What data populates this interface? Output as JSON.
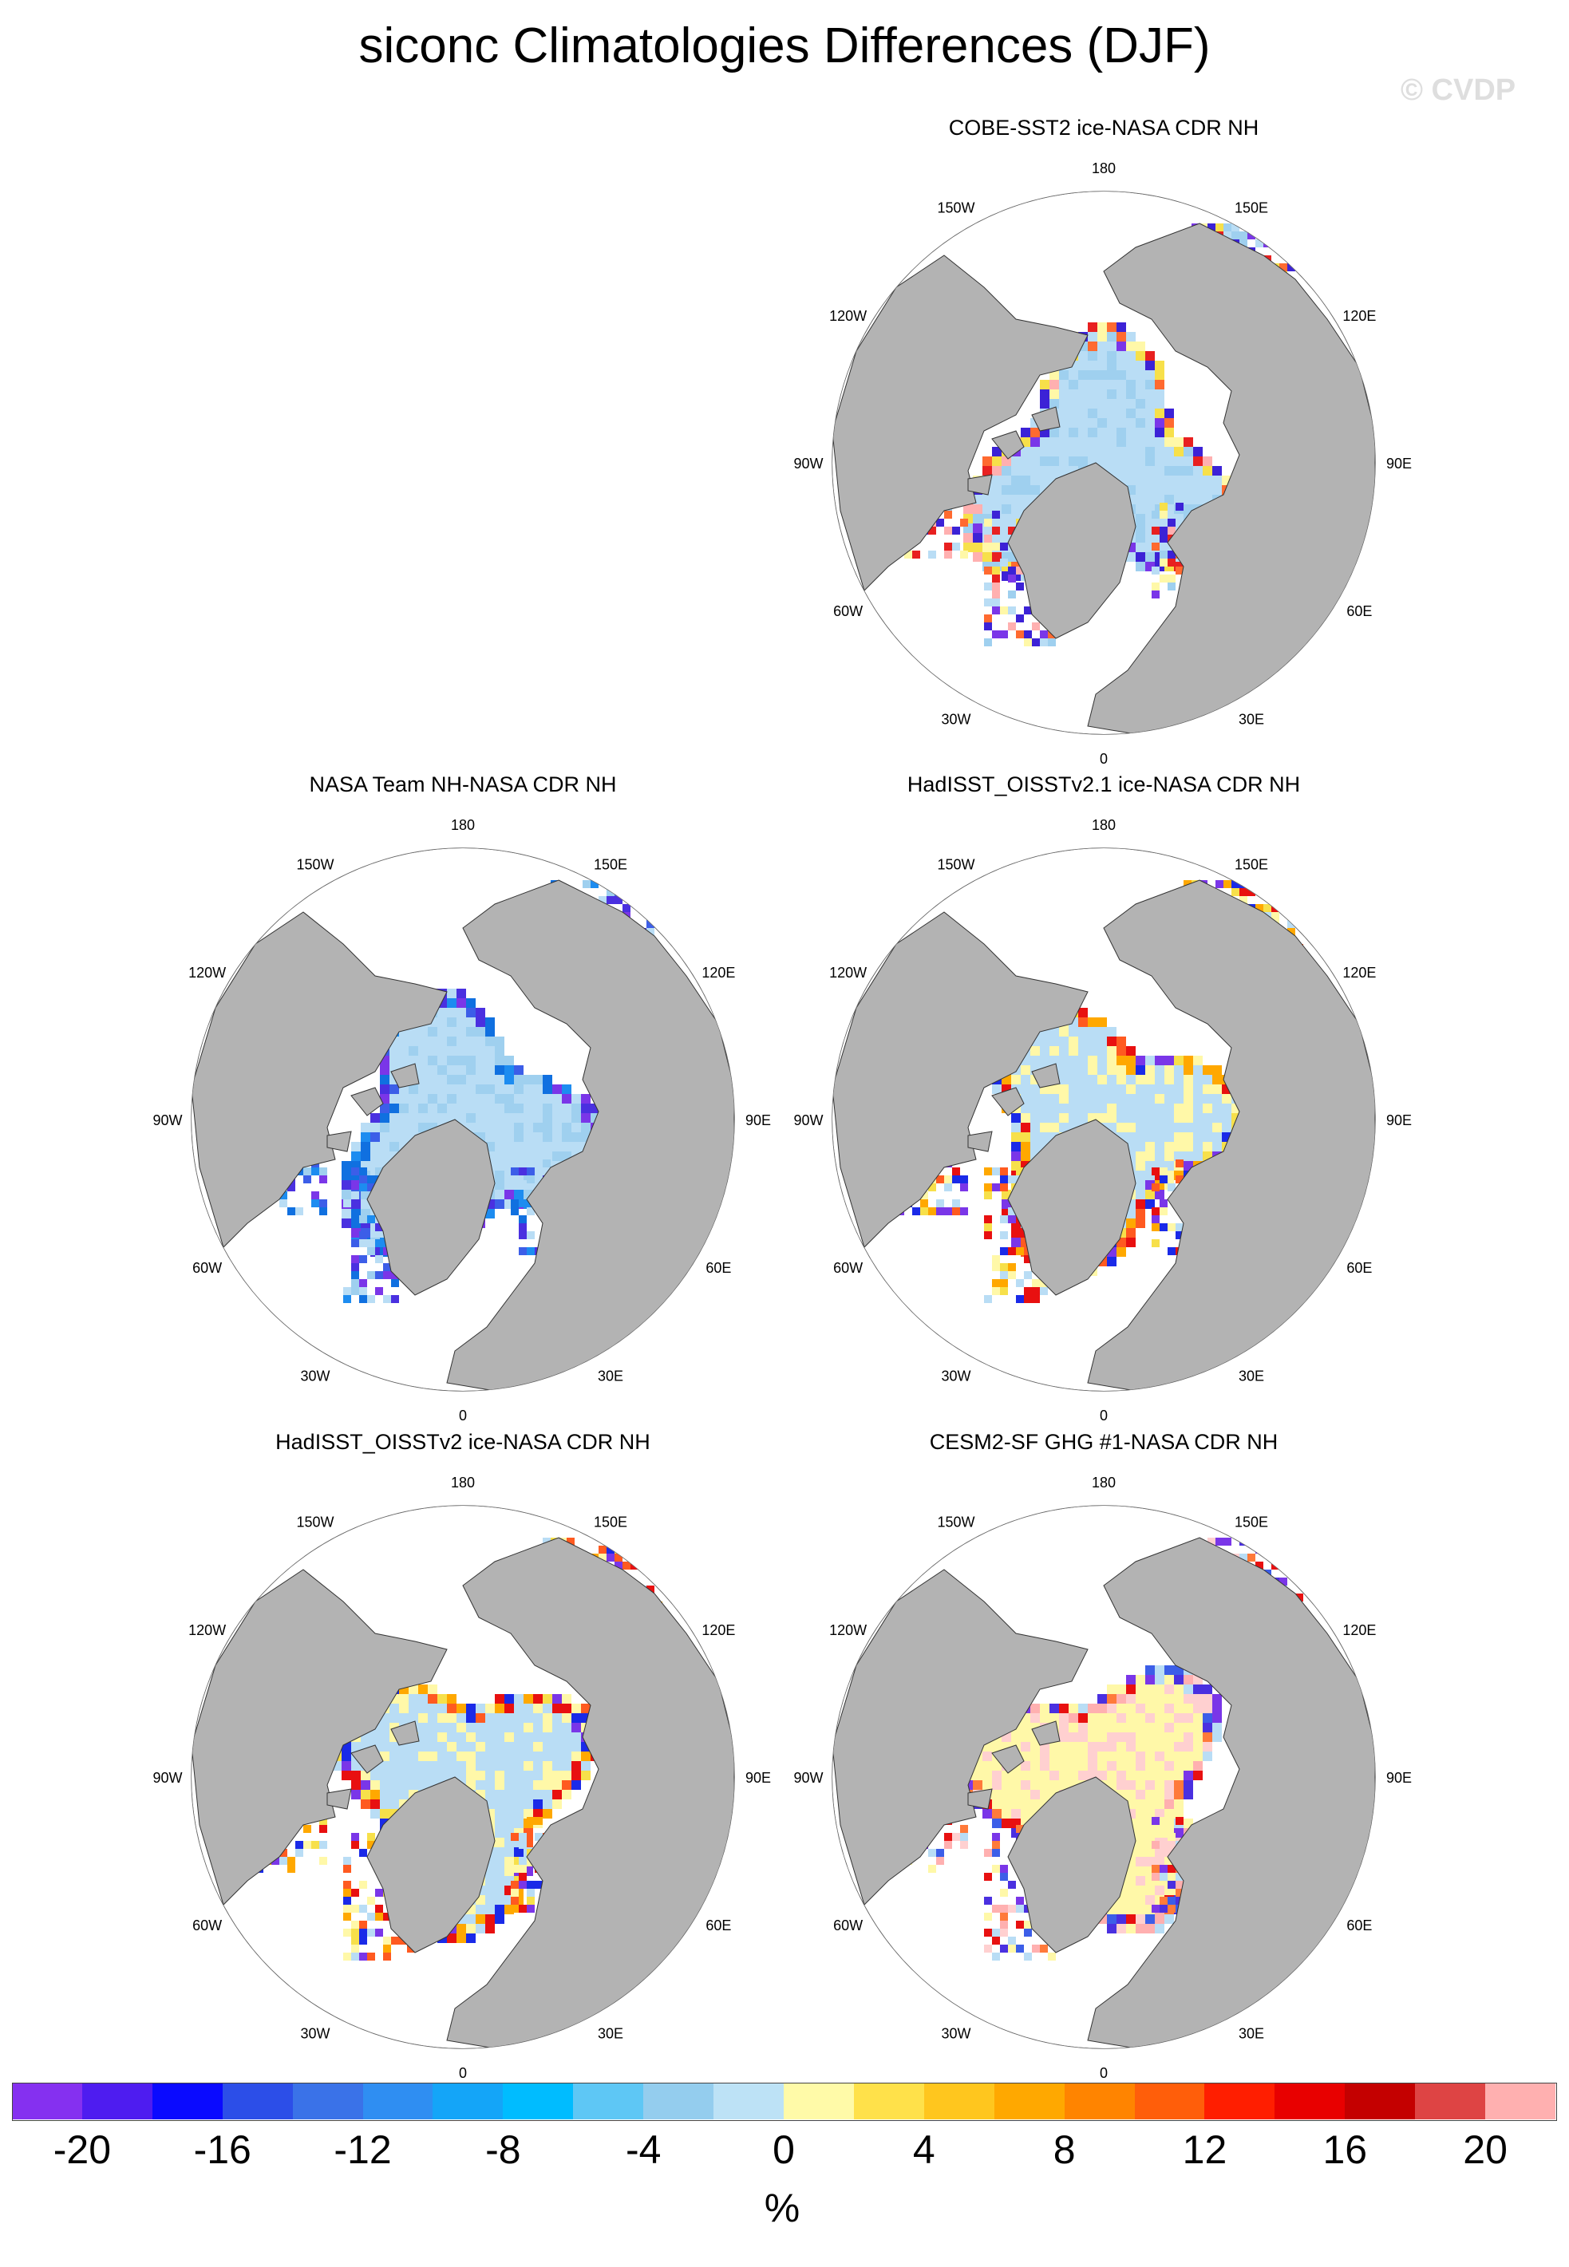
{
  "title": "siconc Climatologies Differences (DJF)",
  "watermark": "© CVDP",
  "units": "%",
  "lon_labels": {
    "top": "180",
    "bottom": "0",
    "left": "90W",
    "right": "90E",
    "upper_left": "150W",
    "upper_right": "150E",
    "mid_upper_left": "120W",
    "mid_upper_right": "120E",
    "mid_lower_left": "60W",
    "mid_lower_right": "60E",
    "lower_left": "30W",
    "lower_right": "30E"
  },
  "panels": [
    {
      "id": "cobe",
      "title": "COBE-SST2 ice-NASA CDR NH",
      "palette": [
        "#b9ddf5",
        "#9fd0ef",
        "#fff8a8",
        "#f7e04a",
        "#ff6a30",
        "#e82020",
        "#ffb0b0",
        "#3c22d6",
        "#7a36e8"
      ]
    },
    {
      "id": "nasateam",
      "title": "NASA Team NH-NASA CDR NH",
      "palette": [
        "#b9ddf5",
        "#9fd0ef",
        "#1d8cf0",
        "#1070e0",
        "#3c5ee8",
        "#4a30e0",
        "#7a36e8"
      ]
    },
    {
      "id": "hadisst21",
      "title": "HadISST_OISSTv2.1 ice-NASA CDR NH",
      "palette": [
        "#b9ddf5",
        "#fff8a8",
        "#f7e04a",
        "#ffa800",
        "#ff5a20",
        "#e81010",
        "#1a2ae8",
        "#7a36e8"
      ]
    },
    {
      "id": "hadisst2",
      "title": "HadISST_OISSTv2 ice-NASA CDR NH",
      "palette": [
        "#b9ddf5",
        "#fff8a8",
        "#f7e04a",
        "#ffa800",
        "#ff5a20",
        "#e81010",
        "#1a2ae8",
        "#7a36e8"
      ]
    },
    {
      "id": "cesm2",
      "title": "CESM2-SF GHG #1-NASA CDR NH",
      "palette": [
        "#fff8a8",
        "#ffd0d0",
        "#ffb0b0",
        "#ff7a3a",
        "#e81010",
        "#3c5ee8",
        "#4a30e0",
        "#7a36e8",
        "#b9ddf5"
      ]
    }
  ],
  "colorbar": {
    "colors": [
      "#8530f0",
      "#4e1cf0",
      "#0a0aff",
      "#2c4ee8",
      "#3a72e8",
      "#2f8ef2",
      "#14a5f8",
      "#00bcff",
      "#5ec7f5",
      "#94cdee",
      "#bde2f6",
      "#fffaa8",
      "#ffe14a",
      "#ffc61e",
      "#ffa800",
      "#ff8400",
      "#ff5e0a",
      "#ff1e00",
      "#e80000",
      "#c40000",
      "#de4444",
      "#ffb0b0"
    ],
    "labels": [
      "-20",
      "-16",
      "-12",
      "-8",
      "-4",
      "0",
      "4",
      "8",
      "12",
      "16",
      "20"
    ]
  }
}
